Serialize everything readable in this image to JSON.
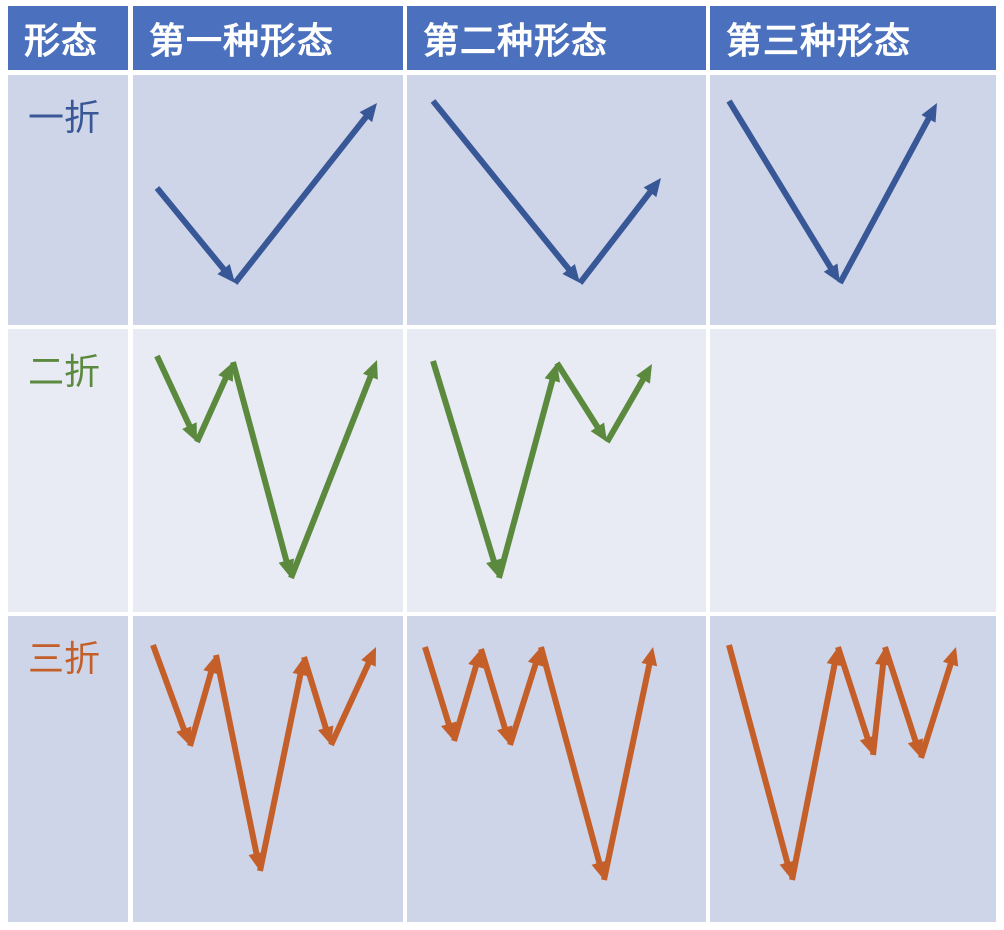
{
  "header": {
    "corner": "形态",
    "columns": [
      "第一种形态",
      "第二种形态",
      "第三种形态"
    ]
  },
  "rows": [
    {
      "label": "一折",
      "color": "#385796"
    },
    {
      "label": "二折",
      "color": "#5b8a3e"
    },
    {
      "label": "三折",
      "color": "#c45f2a"
    }
  ],
  "colors": {
    "header_bg": "#4a70be",
    "header_text": "#ffffff",
    "band_dark": "#cfd5e8",
    "band_light": "#e8ebf4"
  },
  "patterns": [
    [
      "first-form-one-fold",
      "second-form-one-fold",
      "third-form-one-fold"
    ],
    [
      "first-form-two-fold",
      "second-form-two-fold",
      ""
    ],
    [
      "first-form-three-fold",
      "second-form-three-fold",
      "third-form-three-fold"
    ]
  ]
}
